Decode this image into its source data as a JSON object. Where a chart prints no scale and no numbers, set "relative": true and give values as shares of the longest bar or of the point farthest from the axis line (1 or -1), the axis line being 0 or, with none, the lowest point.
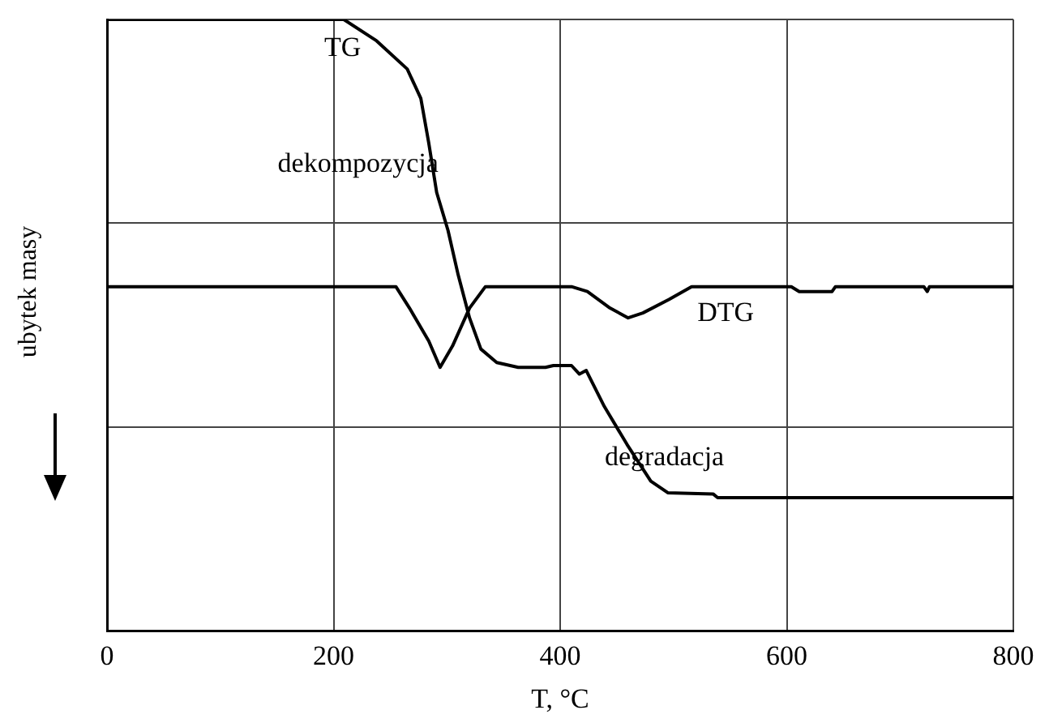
{
  "chart_data": {
    "type": "line",
    "relative": true,
    "xlabel": "T, °C",
    "ylabel": "ubytek masy",
    "xlim": [
      0,
      800
    ],
    "xticks": [
      0,
      200,
      400,
      600,
      800
    ],
    "grid": true,
    "legend": false,
    "marker": "none",
    "line_style": "solid",
    "series": [
      {
        "name": "TG",
        "color": "#000000",
        "x": [
          0,
          209,
          238,
          265,
          277,
          284,
          291,
          301,
          310,
          320,
          330,
          344,
          363,
          387,
          394,
          410,
          417,
          423,
          439,
          459,
          480,
          495,
          535,
          539,
          800
        ],
        "values": [
          1,
          1,
          0.965,
          0.919,
          0.871,
          0.798,
          0.717,
          0.655,
          0.582,
          0.512,
          0.461,
          0.439,
          0.431,
          0.431,
          0.434,
          0.434,
          0.42,
          0.426,
          0.367,
          0.305,
          0.245,
          0.226,
          0.224,
          0.218,
          0.218
        ]
      },
      {
        "name": "DTG",
        "color": "#000000",
        "x": [
          0,
          255,
          267,
          284,
          294,
          305,
          320,
          334,
          410,
          424,
          444,
          460,
          473,
          496,
          516,
          604,
          611,
          640,
          643,
          721,
          724,
          726,
          800
        ],
        "values": [
          0.563,
          0.563,
          0.528,
          0.474,
          0.431,
          0.466,
          0.528,
          0.563,
          0.563,
          0.555,
          0.528,
          0.512,
          0.52,
          0.542,
          0.563,
          0.563,
          0.555,
          0.555,
          0.563,
          0.563,
          0.555,
          0.563,
          0.563
        ]
      }
    ],
    "annotations": [
      "dekompozycja",
      "degradacja"
    ]
  }
}
